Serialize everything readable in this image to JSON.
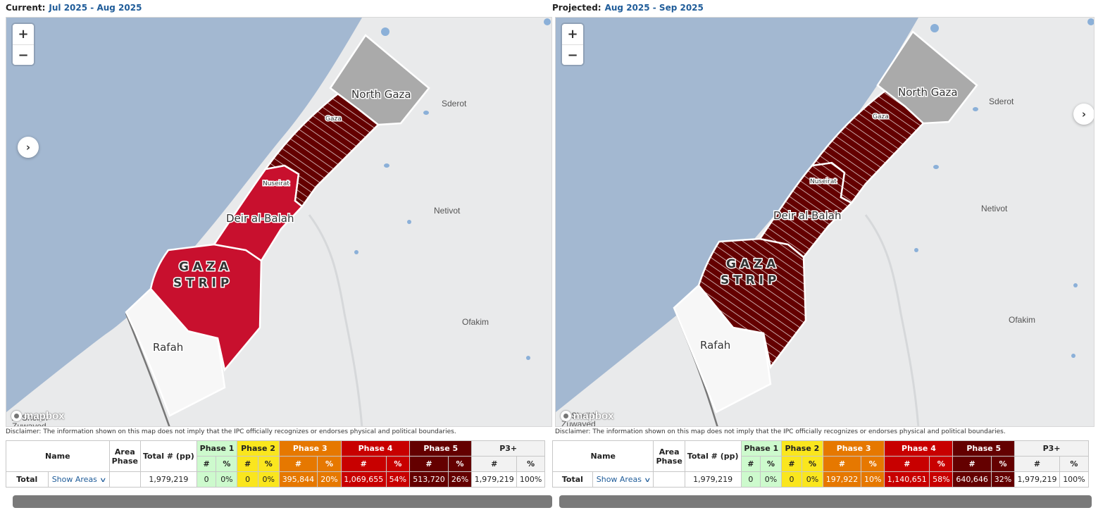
{
  "maps": [
    {
      "heading_label": "Current:",
      "period": "Jul 2025 - Aug 2025",
      "colors": {
        "north_gaza": "#aaaaaa",
        "gaza": "#640000",
        "deir_al_balah": "#c8102e",
        "khan_younis": "#c8102e",
        "rafah": "#f7f7f7"
      },
      "hatched": {
        "gaza": true,
        "deir_al_balah": false,
        "khan_younis": false
      },
      "labels": {
        "north_gaza": "North Gaza",
        "gaza": "Gaza",
        "nuseirat": "Nuseirat",
        "deir_al_balah": "Deir al-Balah",
        "strip_line1": "G A Z A",
        "strip_line2": "S T R I P",
        "rafah": "Rafah",
        "sderot": "Sderot",
        "netivot": "Netivot",
        "ofakim": "Ofakim",
        "sheikh": "Al Sheikh",
        "zuwayed": "Zuwayed"
      },
      "toggle_icon": "chevron-right-icon",
      "toggle_glyph": "›",
      "zoom_in": "+",
      "zoom_out": "−",
      "logo_text": "mapbox",
      "disclaimer": "Disclaimer: The information shown on this map does not imply that the IPC officially recognizes or endorses physical and political boundaries.",
      "table": {
        "headers": {
          "name": "Name",
          "area_phase_1": "Area",
          "area_phase_2": "Phase",
          "total": "Total # (pp)",
          "p1": "Phase 1",
          "p2": "Phase 2",
          "p3": "Phase 3",
          "p4": "Phase 4",
          "p5": "Phase 5",
          "p3plus": "P3+",
          "num": "#",
          "pct": "%"
        },
        "total_row": {
          "label": "Total",
          "show_areas": "Show Areas",
          "total": "1,979,219",
          "p1_num": "0",
          "p1_pct": "0%",
          "p2_num": "0",
          "p2_pct": "0%",
          "p3_num": "395,844",
          "p3_pct": "20%",
          "p4_num": "1,069,655",
          "p4_pct": "54%",
          "p5_num": "513,720",
          "p5_pct": "26%",
          "p3plus_num": "1,979,219",
          "p3plus_pct": "100%"
        }
      }
    },
    {
      "heading_label": "Projected:",
      "period": "Aug 2025 - Sep 2025",
      "colors": {
        "north_gaza": "#aaaaaa",
        "gaza": "#640000",
        "deir_al_balah": "#640000",
        "khan_younis": "#640000",
        "rafah": "#f7f7f7"
      },
      "hatched": {
        "gaza": true,
        "deir_al_balah": true,
        "khan_younis": true
      },
      "labels": {
        "north_gaza": "North Gaza",
        "gaza": "Gaza",
        "nuseirat": "Nuseirat",
        "deir_al_balah": "Deir al-Balah",
        "strip_line1": "G A Z A",
        "strip_line2": "S T R I P",
        "rafah": "Rafah",
        "sderot": "Sderot",
        "netivot": "Netivot",
        "ofakim": "Ofakim",
        "sheikh": "Al Sheikh",
        "zuwayed": "Zuwayed"
      },
      "toggle_icon": "chevron-right-icon",
      "toggle_glyph": "›",
      "zoom_in": "+",
      "zoom_out": "−",
      "logo_text": "mapbox",
      "disclaimer": "Disclaimer: The information shown on this map does not imply that the IPC officially recognizes or endorses physical and political boundaries.",
      "table": {
        "headers": {
          "name": "Name",
          "area_phase_1": "Area",
          "area_phase_2": "Phase",
          "total": "Total # (pp)",
          "p1": "Phase 1",
          "p2": "Phase 2",
          "p3": "Phase 3",
          "p4": "Phase 4",
          "p5": "Phase 5",
          "p3plus": "P3+",
          "num": "#",
          "pct": "%"
        },
        "total_row": {
          "label": "Total",
          "show_areas": "Show Areas",
          "total": "1,979,219",
          "p1_num": "0",
          "p1_pct": "0%",
          "p2_num": "0",
          "p2_pct": "0%",
          "p3_num": "197,922",
          "p3_pct": "10%",
          "p4_num": "1,140,651",
          "p4_pct": "58%",
          "p5_num": "640,646",
          "p5_pct": "32%",
          "p3plus_num": "1,979,219",
          "p3plus_pct": "100%"
        }
      }
    }
  ]
}
